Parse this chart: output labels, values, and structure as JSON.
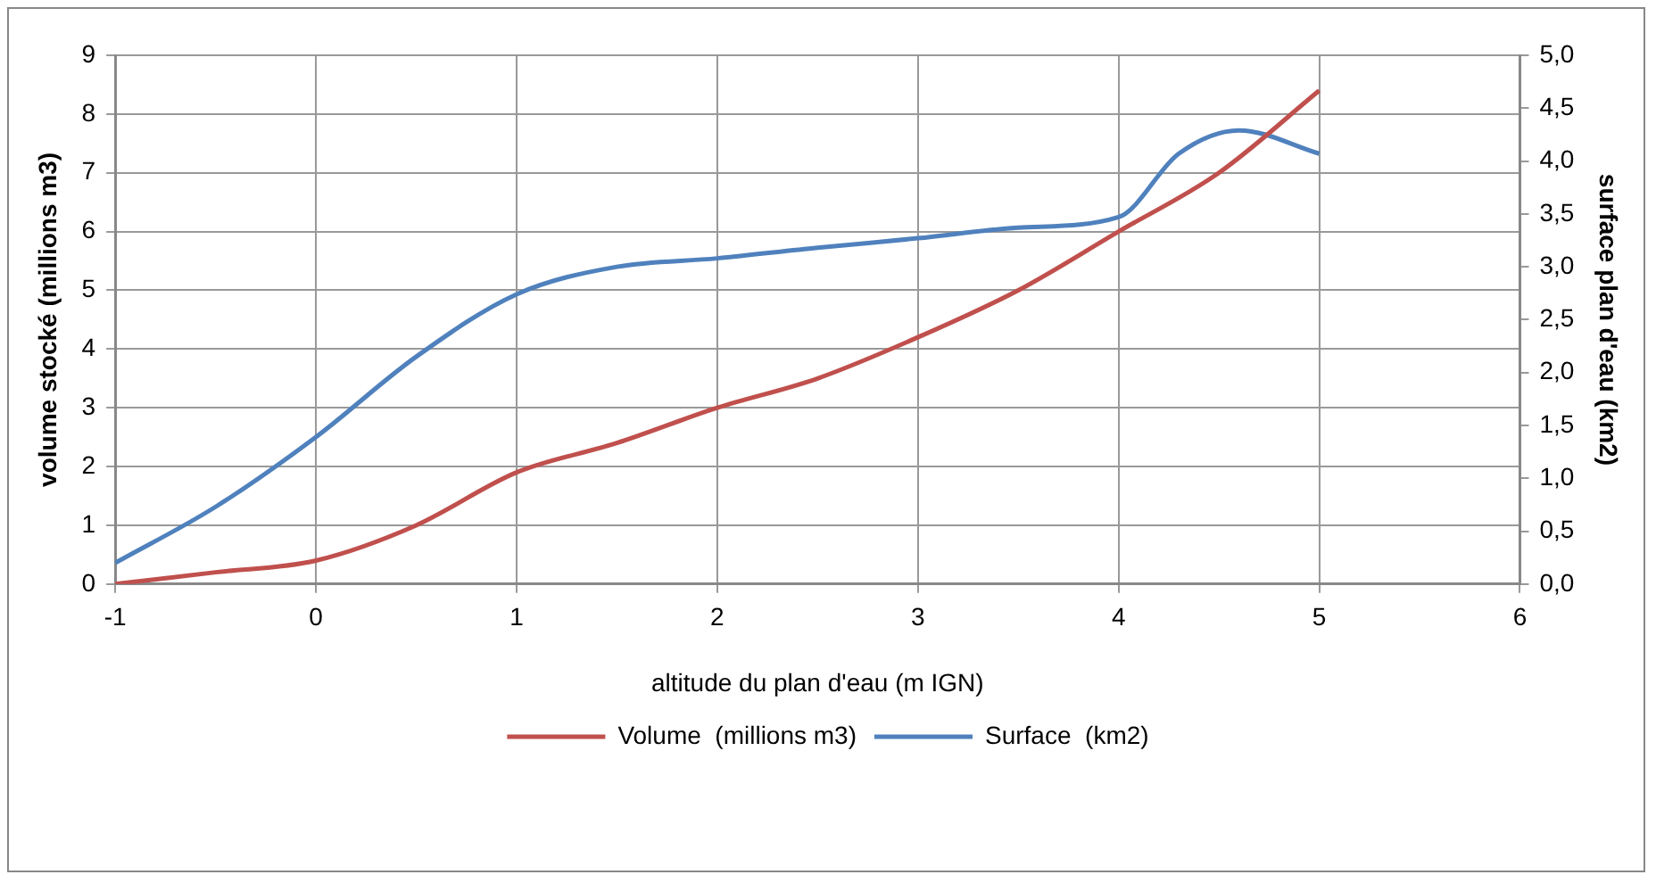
{
  "chart_data": {
    "type": "line",
    "xlabel": "altitude du plan d'eau (m IGN)",
    "ylabel": "volume stocké (millions m3)",
    "y2label": "surface plan d'eau (km2)",
    "series": [
      {
        "name": "Volume  (millions m3)",
        "color": "#c0504d",
        "x": [
          -1,
          -0.5,
          0,
          0.5,
          1,
          1.5,
          2,
          2.5,
          3,
          3.5,
          4,
          4.5,
          5
        ],
        "values": [
          0,
          0.2,
          0.4,
          1.0,
          1.9,
          2.4,
          3.0,
          3.5,
          4.2,
          5.0,
          6.0,
          7.0,
          8.4
        ]
      },
      {
        "name": "Surface  (km2)",
        "color": "#4f81bd",
        "axis": "y2",
        "x": [
          -1,
          -0.5,
          0,
          0.5,
          1,
          1.5,
          2,
          2.5,
          3,
          3.5,
          4,
          4.3,
          4.6,
          5
        ],
        "values": [
          0.2,
          0.73,
          1.39,
          2.15,
          2.74,
          3.0,
          3.08,
          3.18,
          3.27,
          3.37,
          3.47,
          4.07,
          4.29,
          4.07
        ]
      }
    ],
    "xlim": [
      -1,
      6
    ],
    "xticks": [
      -1,
      0,
      1,
      2,
      3,
      4,
      5,
      6
    ],
    "ylim": [
      0,
      9
    ],
    "yticks": [
      0,
      1,
      2,
      3,
      4,
      5,
      6,
      7,
      8,
      9
    ],
    "y2lim": [
      0,
      5
    ],
    "y2ticks": [
      {
        "value": 0,
        "label": "0,0"
      },
      {
        "value": 0.5,
        "label": "0,5"
      },
      {
        "value": 1,
        "label": "1,0"
      },
      {
        "value": 1.5,
        "label": "1,5"
      },
      {
        "value": 2,
        "label": "2,0"
      },
      {
        "value": 2.5,
        "label": "2,5"
      },
      {
        "value": 3,
        "label": "3,0"
      },
      {
        "value": 3.5,
        "label": "3,5"
      },
      {
        "value": 4,
        "label": "4,0"
      },
      {
        "value": 4.5,
        "label": "4,5"
      },
      {
        "value": 5,
        "label": "5,0"
      }
    ],
    "grid": true,
    "legend": "bottom",
    "marker": "none",
    "line_style": "solid"
  }
}
